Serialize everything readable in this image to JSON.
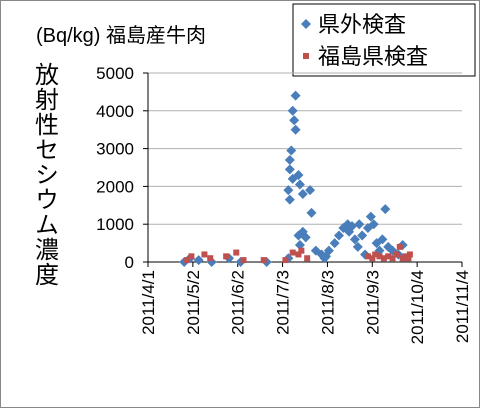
{
  "chart_data": {
    "type": "scatter",
    "title": "(Bq/kg) 福島産牛肉",
    "y_label": "放射性セシウム濃度",
    "xlim": [
      "2011/4/1",
      "2011/11/4"
    ],
    "xticks": [
      "2011/4/1",
      "2011/5/2",
      "2011/6/2",
      "2011/7/3",
      "2011/8/3",
      "2011/9/3",
      "2011/10/4",
      "2011/11/4"
    ],
    "ylim": [
      0,
      5000
    ],
    "yticks": [
      0,
      1000,
      2000,
      3000,
      4000,
      5000
    ],
    "grid": true,
    "legend": "upper right",
    "series": [
      {
        "name": "県外検査",
        "color": "#4a7ebb",
        "marker": "diamond",
        "x": [
          "2011/4/26",
          "2011/4/30",
          "2011/5/6",
          "2011/5/15",
          "2011/5/27",
          "2011/6/4",
          "2011/6/22",
          "2011/7/7",
          "2011/7/12",
          "2011/7/10",
          "2011/7/11",
          "2011/7/12",
          "2011/7/9",
          "2011/7/8",
          "2011/7/8",
          "2011/7/10",
          "2011/7/7",
          "2011/7/8",
          "2011/7/14",
          "2011/7/15",
          "2011/7/17",
          "2011/7/22",
          "2011/7/23",
          "2011/7/14",
          "2011/7/17",
          "2011/7/19",
          "2011/7/15",
          "2011/7/26",
          "2011/7/30",
          "2011/8/1",
          "2011/8/2",
          "2011/8/4",
          "2011/8/8",
          "2011/8/11",
          "2011/8/14",
          "2011/8/17",
          "2011/8/18",
          "2011/8/20",
          "2011/8/22",
          "2011/8/24",
          "2011/8/25",
          "2011/8/27",
          "2011/8/29",
          "2011/8/31",
          "2011/9/2",
          "2011/9/4",
          "2011/9/6",
          "2011/9/8",
          "2011/9/10",
          "2011/9/12",
          "2011/9/14",
          "2011/9/17",
          "2011/9/21",
          "2011/9/24"
        ],
        "values": [
          0,
          100,
          50,
          0,
          100,
          0,
          0,
          100,
          4400,
          4000,
          3750,
          3500,
          2950,
          2700,
          2450,
          2200,
          1900,
          1650,
          2300,
          2050,
          1800,
          1900,
          1300,
          700,
          800,
          650,
          450,
          300,
          200,
          100,
          150,
          300,
          500,
          700,
          900,
          1000,
          800,
          950,
          600,
          400,
          1000,
          700,
          200,
          900,
          1200,
          1000,
          500,
          300,
          600,
          1400,
          400,
          300,
          200,
          450
        ]
      },
      {
        "name": "福島県検査",
        "color": "#c0504d",
        "marker": "square",
        "x": [
          "2011/4/28",
          "2011/5/1",
          "2011/5/10",
          "2011/5/14",
          "2011/5/25",
          "2011/6/1",
          "2011/6/6",
          "2011/6/20",
          "2011/7/5",
          "2011/7/10",
          "2011/7/14",
          "2011/7/16",
          "2011/7/20",
          "2011/8/31",
          "2011/9/3",
          "2011/9/5",
          "2011/9/8",
          "2011/9/11",
          "2011/9/14",
          "2011/9/17",
          "2011/9/20",
          "2011/9/22",
          "2011/9/24",
          "2011/9/26",
          "2011/9/28",
          "2011/9/29"
        ],
        "values": [
          50,
          150,
          200,
          100,
          150,
          250,
          50,
          50,
          50,
          250,
          200,
          300,
          100,
          150,
          100,
          200,
          150,
          100,
          150,
          100,
          200,
          400,
          100,
          150,
          100,
          200
        ]
      }
    ]
  }
}
